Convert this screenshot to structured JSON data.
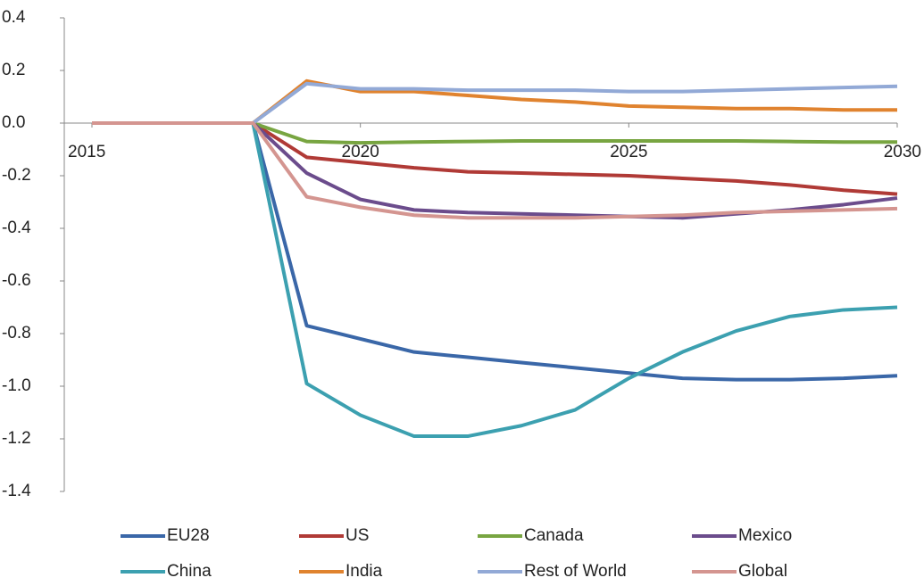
{
  "chart_data": {
    "type": "line",
    "x": [
      2015,
      2016,
      2017,
      2018,
      2019,
      2020,
      2021,
      2022,
      2023,
      2024,
      2025,
      2026,
      2027,
      2028,
      2029,
      2030
    ],
    "series": [
      {
        "name": "EU28",
        "color": "#3a67a8",
        "values": [
          0,
          0,
          0,
          0,
          -0.77,
          -0.82,
          -0.87,
          -0.89,
          -0.91,
          -0.93,
          -0.95,
          -0.97,
          -0.975,
          -0.975,
          -0.97,
          -0.96
        ]
      },
      {
        "name": "US",
        "color": "#b03a36",
        "values": [
          0,
          0,
          0,
          0,
          -0.13,
          -0.15,
          -0.17,
          -0.185,
          -0.19,
          -0.195,
          -0.2,
          -0.21,
          -0.22,
          -0.235,
          -0.255,
          -0.27
        ]
      },
      {
        "name": "Canada",
        "color": "#78a541",
        "values": [
          0,
          0,
          0,
          0,
          -0.07,
          -0.075,
          -0.072,
          -0.07,
          -0.068,
          -0.068,
          -0.068,
          -0.068,
          -0.068,
          -0.07,
          -0.072,
          -0.072
        ]
      },
      {
        "name": "Mexico",
        "color": "#6b4c8c",
        "values": [
          0,
          0,
          0,
          0,
          -0.19,
          -0.29,
          -0.33,
          -0.34,
          -0.345,
          -0.35,
          -0.355,
          -0.36,
          -0.345,
          -0.33,
          -0.31,
          -0.285
        ]
      },
      {
        "name": "China",
        "color": "#3ca0b0",
        "values": [
          0,
          0,
          0,
          0,
          -0.99,
          -1.11,
          -1.19,
          -1.19,
          -1.15,
          -1.09,
          -0.97,
          -0.87,
          -0.79,
          -0.735,
          -0.71,
          -0.7
        ]
      },
      {
        "name": "India",
        "color": "#e0832f",
        "values": [
          0,
          0,
          0,
          0,
          0.16,
          0.12,
          0.12,
          0.105,
          0.09,
          0.08,
          0.065,
          0.06,
          0.055,
          0.055,
          0.05,
          0.05
        ]
      },
      {
        "name": "Rest of World",
        "color": "#92a9d6",
        "values": [
          0,
          0,
          0,
          0,
          0.15,
          0.13,
          0.13,
          0.125,
          0.125,
          0.125,
          0.12,
          0.12,
          0.125,
          0.13,
          0.135,
          0.14
        ]
      },
      {
        "name": "Global",
        "color": "#d49590",
        "values": [
          0,
          0,
          0,
          0,
          -0.28,
          -0.32,
          -0.35,
          -0.36,
          -0.36,
          -0.36,
          -0.355,
          -0.35,
          -0.34,
          -0.335,
          -0.33,
          -0.325
        ]
      }
    ],
    "xlim": [
      2015,
      2030
    ],
    "xticks": [
      2015,
      2020,
      2025,
      2030
    ],
    "ylim": [
      -1.4,
      0.4
    ],
    "yticks": [
      0.4,
      0.2,
      {
        "value": 0,
        "label": "0.0"
      },
      -0.2,
      -0.4,
      -0.6,
      -0.8,
      {
        "value": -1,
        "label": "-1.0"
      },
      -1.2,
      -1.4
    ],
    "grid": false,
    "legend": "bottom"
  }
}
